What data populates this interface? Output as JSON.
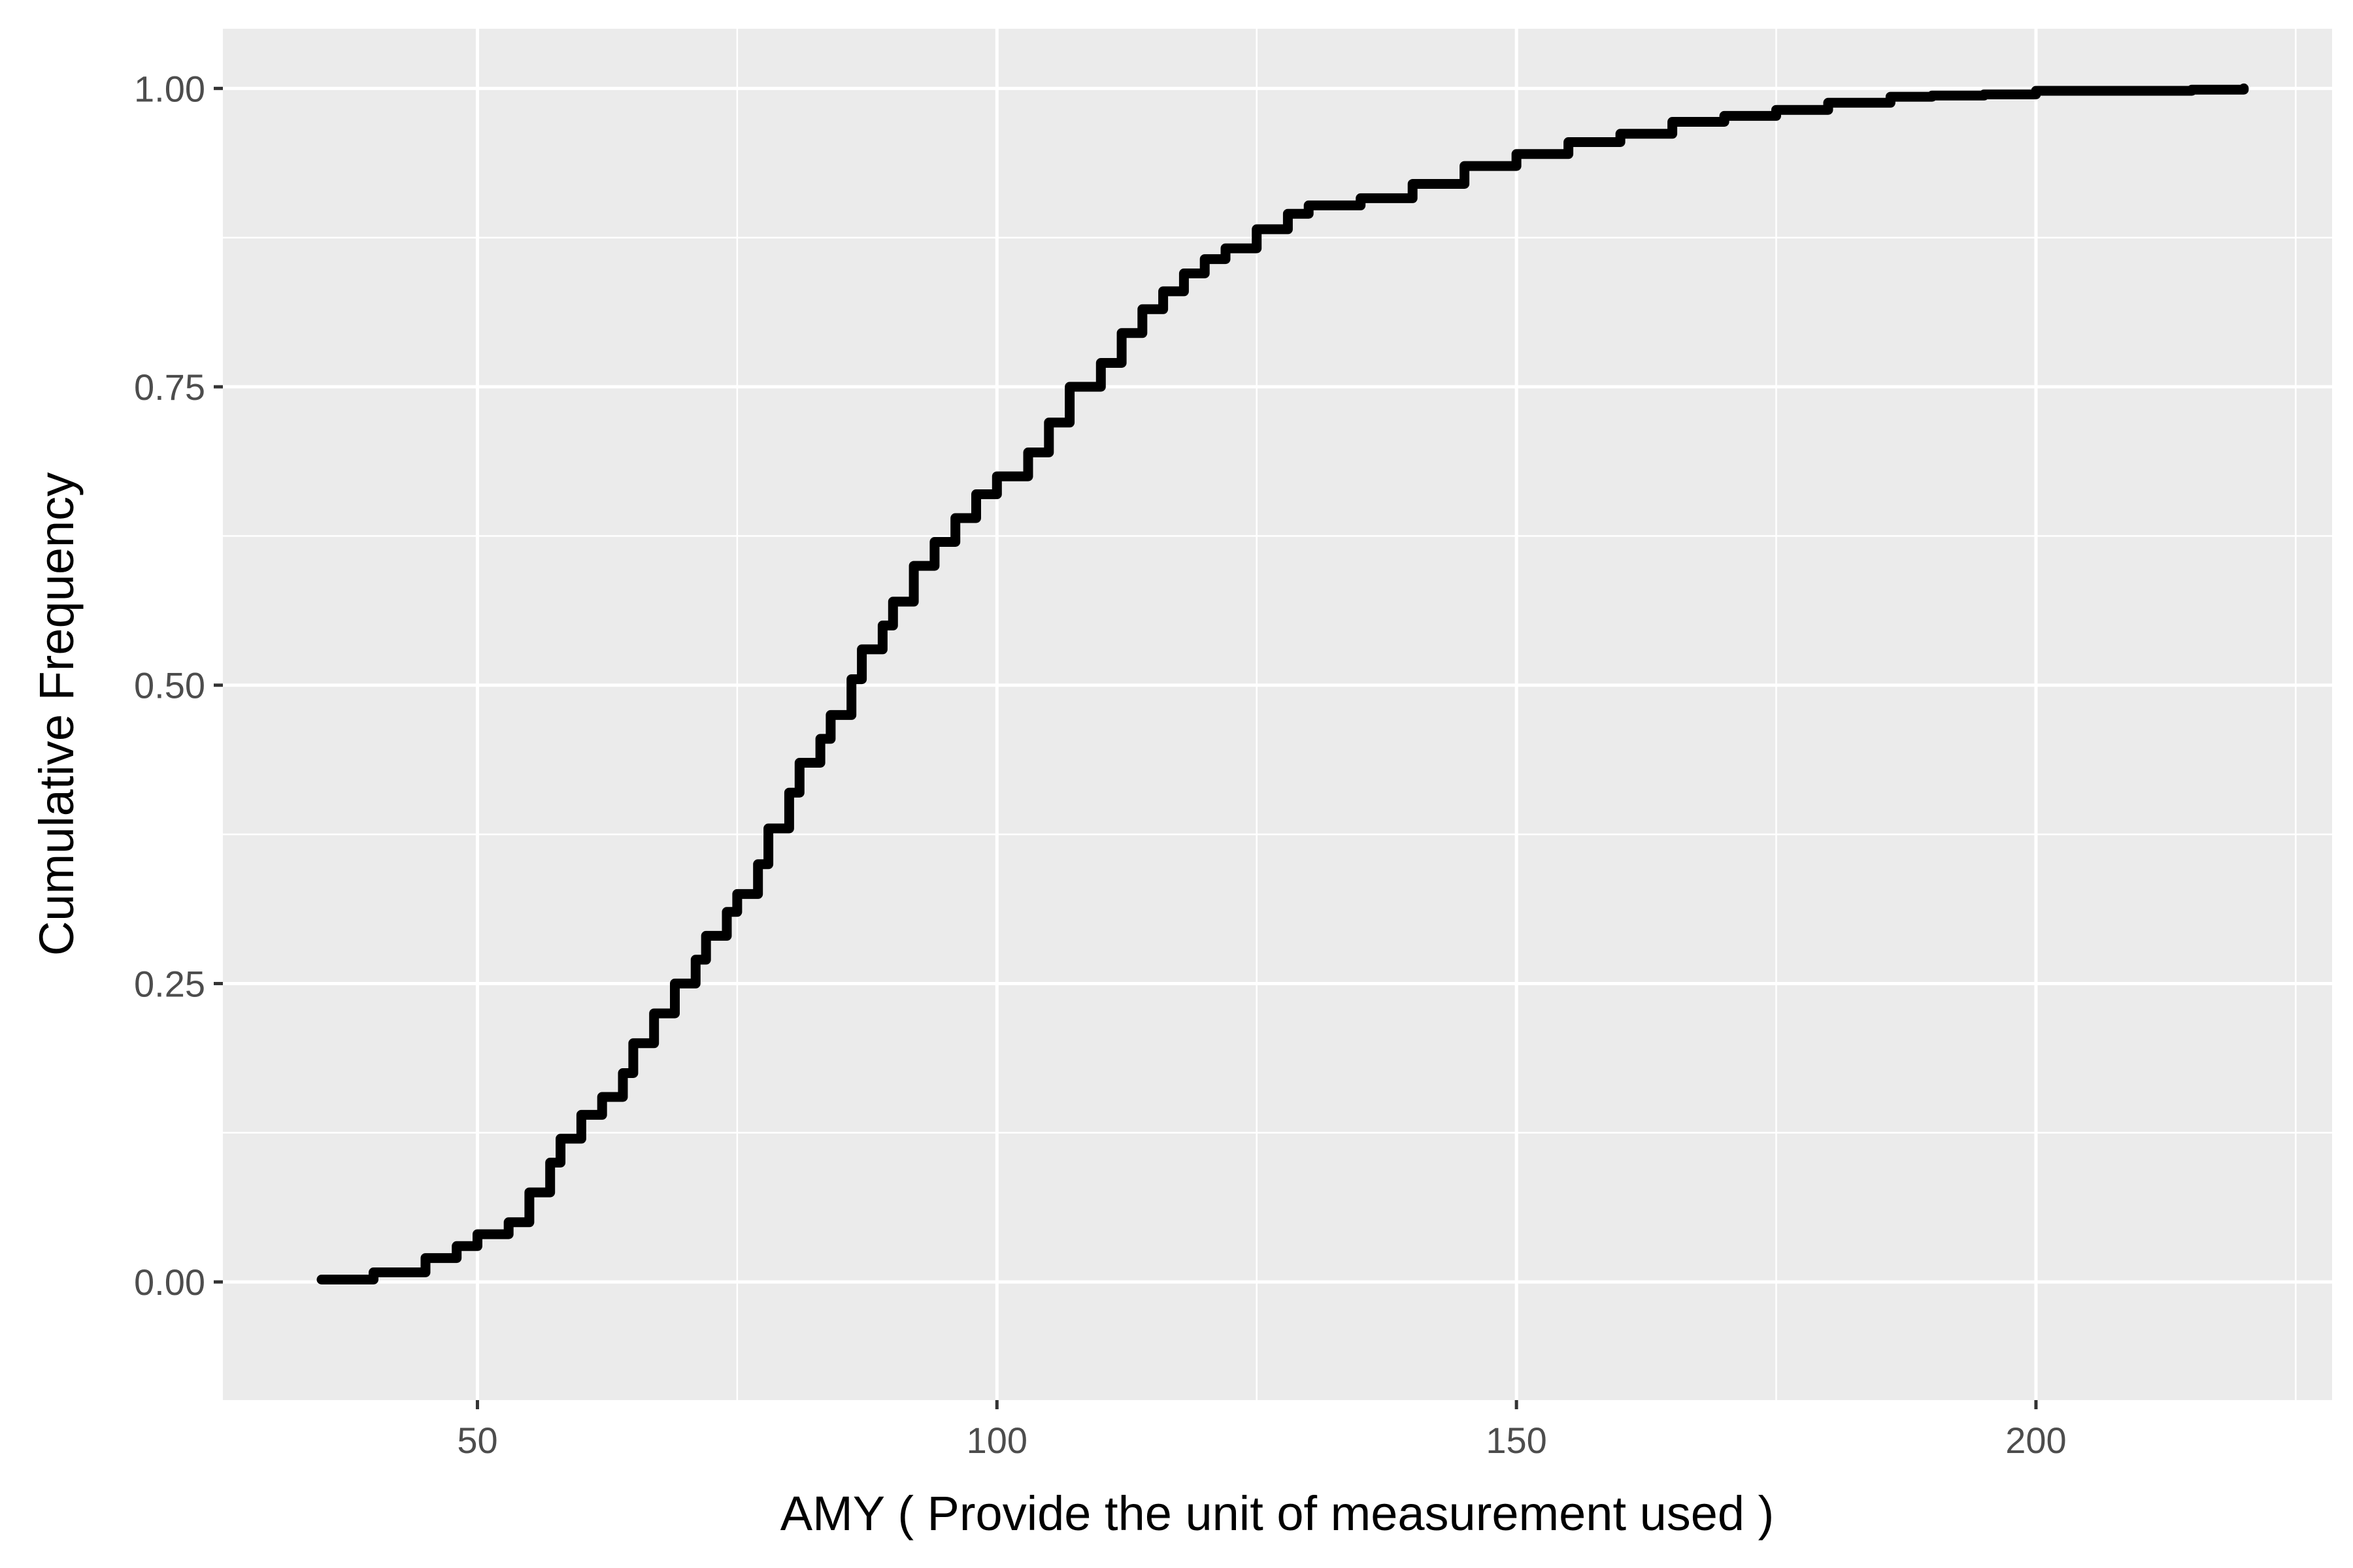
{
  "chart_data": {
    "type": "line",
    "subtype": "ecdf-step",
    "title": "",
    "xlabel": "AMY ( Provide the unit of measurement used )",
    "ylabel": "Cumulative Frequency",
    "xlim": [
      25.5,
      228.5
    ],
    "ylim": [
      -0.099,
      1.05
    ],
    "x_ticks": [
      50,
      100,
      150,
      200
    ],
    "x_tick_labels": [
      "50",
      "100",
      "150",
      "200"
    ],
    "y_ticks": [
      0,
      0.25,
      0.5,
      0.75,
      1.0
    ],
    "y_tick_labels": [
      "0.00",
      "0.25",
      "0.50",
      "0.75",
      "1.00"
    ],
    "grid": true,
    "legend": "none",
    "colors": {
      "panel": "#ebebeb",
      "grid": "#ffffff",
      "line": "#000000",
      "tick_text": "#4d4d4d"
    },
    "series": [
      {
        "x": [
          35,
          40,
          45,
          48,
          50,
          53,
          55,
          57,
          58,
          60,
          62,
          64,
          65,
          67,
          69,
          71,
          72,
          74,
          75,
          77,
          78,
          80,
          81,
          83,
          84,
          86,
          87,
          89,
          90,
          92,
          94,
          96,
          98,
          100,
          103,
          105,
          107,
          110,
          112,
          114,
          116,
          118,
          120,
          122,
          125,
          128,
          130,
          135,
          140,
          145,
          150,
          155,
          160,
          165,
          170,
          175,
          180,
          186,
          190,
          195,
          200,
          210,
          215,
          220
        ],
        "y": [
          0.002,
          0.008,
          0.02,
          0.03,
          0.04,
          0.05,
          0.075,
          0.1,
          0.12,
          0.14,
          0.155,
          0.175,
          0.2,
          0.225,
          0.25,
          0.27,
          0.29,
          0.31,
          0.325,
          0.35,
          0.38,
          0.41,
          0.435,
          0.455,
          0.475,
          0.505,
          0.53,
          0.55,
          0.57,
          0.6,
          0.62,
          0.64,
          0.66,
          0.675,
          0.695,
          0.72,
          0.75,
          0.77,
          0.795,
          0.815,
          0.83,
          0.845,
          0.857,
          0.866,
          0.882,
          0.895,
          0.902,
          0.908,
          0.92,
          0.935,
          0.945,
          0.955,
          0.962,
          0.972,
          0.977,
          0.982,
          0.988,
          0.993,
          0.994,
          0.995,
          0.998,
          0.998,
          0.999,
          1.0
        ]
      }
    ]
  }
}
